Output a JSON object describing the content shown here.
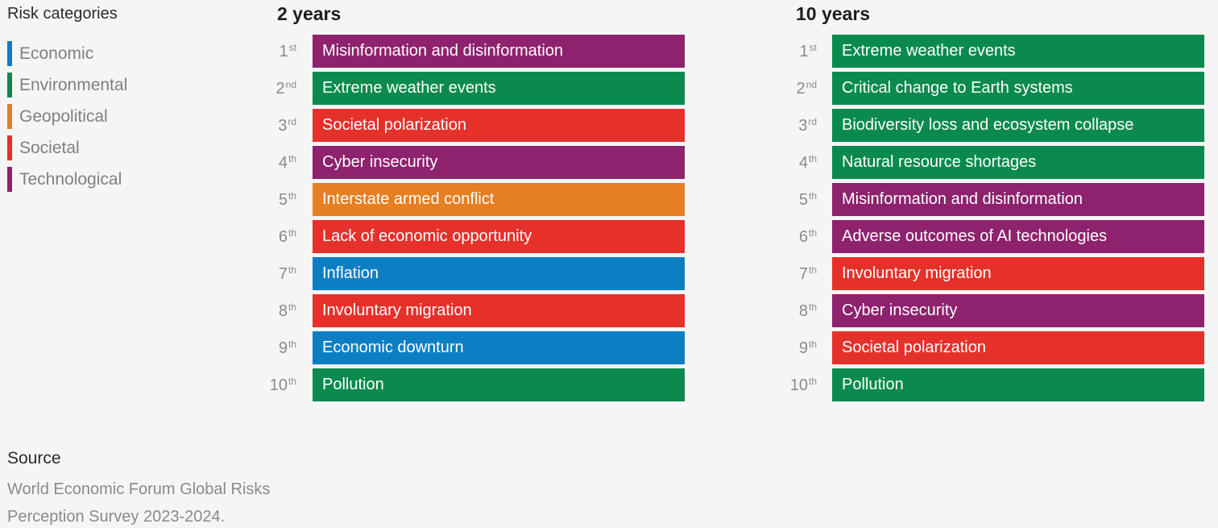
{
  "chart_data": {
    "type": "table",
    "legend": {
      "title": "Risk categories",
      "items": [
        {
          "label": "Economic",
          "color": "#0c7fc4"
        },
        {
          "label": "Environmental",
          "color": "#0a8a4e"
        },
        {
          "label": "Geopolitical",
          "color": "#e67e22"
        },
        {
          "label": "Societal",
          "color": "#e6312b"
        },
        {
          "label": "Technological",
          "color": "#8e226e"
        }
      ]
    },
    "columns": [
      {
        "title": "2 years",
        "rows": [
          {
            "rank": "1",
            "suffix": "st",
            "label": "Misinformation and disinformation",
            "category": "Technological"
          },
          {
            "rank": "2",
            "suffix": "nd",
            "label": "Extreme weather events",
            "category": "Environmental"
          },
          {
            "rank": "3",
            "suffix": "rd",
            "label": "Societal polarization",
            "category": "Societal"
          },
          {
            "rank": "4",
            "suffix": "th",
            "label": "Cyber insecurity",
            "category": "Technological"
          },
          {
            "rank": "5",
            "suffix": "th",
            "label": "Interstate armed conflict",
            "category": "Geopolitical"
          },
          {
            "rank": "6",
            "suffix": "th",
            "label": "Lack of economic opportunity",
            "category": "Societal"
          },
          {
            "rank": "7",
            "suffix": "th",
            "label": "Inflation",
            "category": "Economic"
          },
          {
            "rank": "8",
            "suffix": "th",
            "label": "Involuntary migration",
            "category": "Societal"
          },
          {
            "rank": "9",
            "suffix": "th",
            "label": "Economic downturn",
            "category": "Economic"
          },
          {
            "rank": "10",
            "suffix": "th",
            "label": "Pollution",
            "category": "Environmental"
          }
        ]
      },
      {
        "title": "10 years",
        "rows": [
          {
            "rank": "1",
            "suffix": "st",
            "label": "Extreme weather events",
            "category": "Environmental"
          },
          {
            "rank": "2",
            "suffix": "nd",
            "label": "Critical change to Earth systems",
            "category": "Environmental"
          },
          {
            "rank": "3",
            "suffix": "rd",
            "label": "Biodiversity loss and ecosystem collapse",
            "category": "Environmental"
          },
          {
            "rank": "4",
            "suffix": "th",
            "label": "Natural resource shortages",
            "category": "Environmental"
          },
          {
            "rank": "5",
            "suffix": "th",
            "label": "Misinformation and disinformation",
            "category": "Technological"
          },
          {
            "rank": "6",
            "suffix": "th",
            "label": "Adverse outcomes of AI technologies",
            "category": "Technological"
          },
          {
            "rank": "7",
            "suffix": "th",
            "label": "Involuntary migration",
            "category": "Societal"
          },
          {
            "rank": "8",
            "suffix": "th",
            "label": "Cyber insecurity",
            "category": "Technological"
          },
          {
            "rank": "9",
            "suffix": "th",
            "label": "Societal polarization",
            "category": "Societal"
          },
          {
            "rank": "10",
            "suffix": "th",
            "label": "Pollution",
            "category": "Environmental"
          }
        ]
      }
    ]
  },
  "source": {
    "title": "Source",
    "text": "World Economic Forum Global Risks Perception Survey 2023-2024."
  }
}
